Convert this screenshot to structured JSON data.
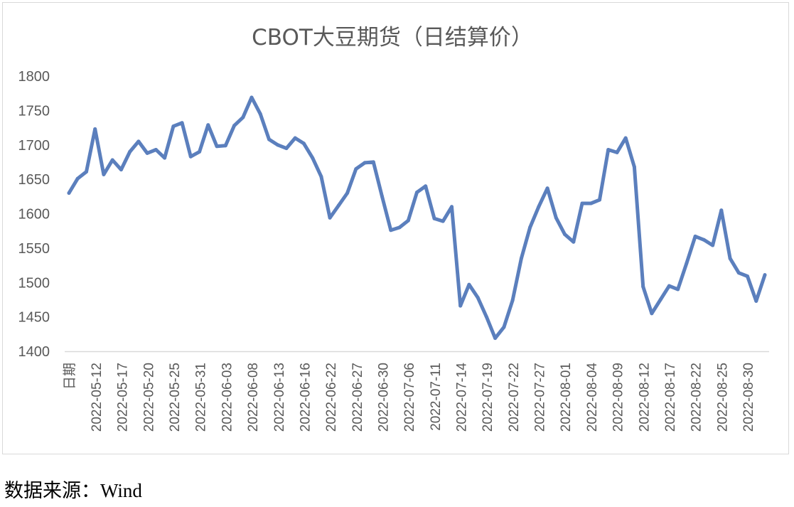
{
  "chart_data": {
    "type": "line",
    "title": "CBOT大豆期货（日结算价）",
    "xlabel": "",
    "ylabel": "",
    "ylim": [
      1400,
      1800
    ],
    "yticks": [
      1400,
      1450,
      1500,
      1550,
      1600,
      1650,
      1700,
      1750,
      1800
    ],
    "grid": false,
    "legend": "none",
    "line_color": "#5b7fbd",
    "x_first_label": "日期",
    "tick_labels": [
      "2022-05-12",
      "2022-05-17",
      "2022-05-20",
      "2022-05-25",
      "2022-05-31",
      "2022-06-03",
      "2022-06-08",
      "2022-06-13",
      "2022-06-16",
      "2022-06-22",
      "2022-06-27",
      "2022-06-30",
      "2022-07-06",
      "2022-07-11",
      "2022-07-14",
      "2022-07-19",
      "2022-07-22",
      "2022-07-27",
      "2022-08-01",
      "2022-08-04",
      "2022-08-09",
      "2022-08-12",
      "2022-08-17",
      "2022-08-22",
      "2022-08-25",
      "2022-08-30"
    ],
    "values": [
      1630,
      1651,
      1661,
      1723,
      1657,
      1678,
      1664,
      1690,
      1705,
      1688,
      1693,
      1681,
      1727,
      1732,
      1683,
      1690,
      1729,
      1698,
      1699,
      1728,
      1740,
      1769,
      1745,
      1708,
      1700,
      1695,
      1710,
      1702,
      1681,
      1654,
      1594,
      1612,
      1630,
      1665,
      1674,
      1675,
      1625,
      1576,
      1580,
      1590,
      1631,
      1640,
      1593,
      1589,
      1610,
      1466,
      1497,
      1478,
      1450,
      1419,
      1435,
      1474,
      1535,
      1580,
      1610,
      1637,
      1594,
      1570,
      1559,
      1615,
      1615,
      1620,
      1693,
      1689,
      1710,
      1668,
      1494,
      1455,
      1475,
      1495,
      1490,
      1528,
      1567,
      1562,
      1554,
      1605,
      1535,
      1514,
      1509,
      1473,
      1511
    ]
  },
  "source_note": "数据来源：Wind"
}
